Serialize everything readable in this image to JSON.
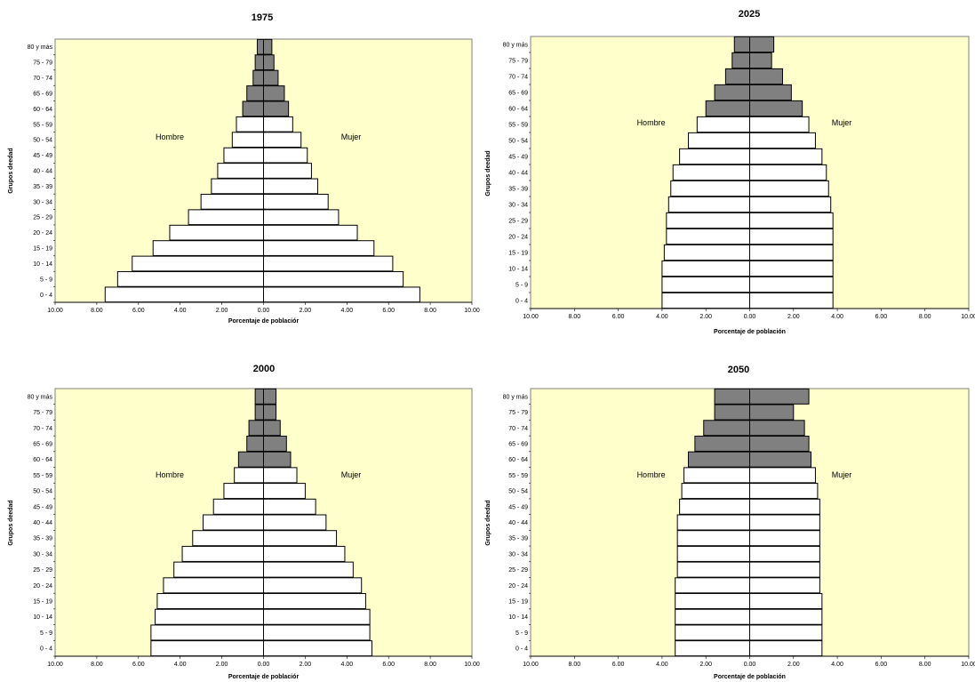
{
  "chart_data": [
    {
      "type": "bar",
      "orientation": "population-pyramid",
      "title": "1975",
      "xlabel": "Porcentaje de poblaciór",
      "ylabel": "Grupos deedad",
      "labels": {
        "male": "Hombre",
        "female": "Mujer"
      },
      "categories": [
        "0 - 4",
        "5 - 9",
        "10 - 14",
        "15 - 19",
        "20 - 24",
        "25 - 29",
        "30 - 34",
        "35 - 39",
        "40 - 44",
        "45 - 49",
        "50 - 54",
        "55 - 59",
        "60 - 64",
        "65 - 69",
        "70 - 74",
        "75 - 79",
        "80 y más"
      ],
      "xticks": [
        "10.00",
        "8.00",
        "6.00",
        "4.00",
        "2.00",
        "0.00",
        "2.00",
        "4.00",
        "6.00",
        "8.00",
        "10.00"
      ],
      "xlim": [
        -10,
        10
      ],
      "series": [
        {
          "name": "Hombre",
          "values": [
            7.6,
            7.0,
            6.3,
            5.3,
            4.5,
            3.6,
            3.0,
            2.5,
            2.2,
            1.9,
            1.5,
            1.3,
            1.0,
            0.8,
            0.5,
            0.4,
            0.3
          ]
        },
        {
          "name": "Mujer",
          "values": [
            7.5,
            6.7,
            6.2,
            5.3,
            4.5,
            3.6,
            3.1,
            2.6,
            2.3,
            2.1,
            1.8,
            1.4,
            1.2,
            1.0,
            0.7,
            0.5,
            0.4
          ]
        }
      ],
      "shaded_from_index": 12,
      "grid": false,
      "plot_background": "#ffffcc",
      "shade_color": "#808080"
    },
    {
      "type": "bar",
      "orientation": "population-pyramid",
      "title": "2025",
      "xlabel": "Porcentaje de población",
      "ylabel": "Grupos deedad",
      "labels": {
        "male": "Hombre",
        "female": "Mujer"
      },
      "categories": [
        "0 - 4",
        "5 - 9",
        "10 - 14",
        "15 - 19",
        "20 - 24",
        "25 - 29",
        "30 - 34",
        "35 - 39",
        "40 - 44",
        "45 - 49",
        "50 - 54",
        "55 - 59",
        "60 - 64",
        "65 - 69",
        "70 - 74",
        "75 - 79",
        "80 y más"
      ],
      "xticks": [
        "10.00",
        "8.00",
        "6.00",
        "4.00",
        "2.00",
        "0.00",
        "2.00",
        "4.00",
        "6.00",
        "8.00",
        "10.00"
      ],
      "xlim": [
        -10,
        10
      ],
      "series": [
        {
          "name": "Hombre",
          "values": [
            4.0,
            4.0,
            4.0,
            3.9,
            3.8,
            3.8,
            3.7,
            3.6,
            3.5,
            3.2,
            2.8,
            2.4,
            2.0,
            1.6,
            1.1,
            0.8,
            0.7
          ]
        },
        {
          "name": "Mujer",
          "values": [
            3.8,
            3.8,
            3.8,
            3.8,
            3.8,
            3.8,
            3.7,
            3.6,
            3.5,
            3.3,
            3.0,
            2.7,
            2.4,
            1.9,
            1.5,
            1.0,
            1.1
          ]
        }
      ],
      "shaded_from_index": 12,
      "grid": false,
      "plot_background": "#ffffcc",
      "shade_color": "#808080"
    },
    {
      "type": "bar",
      "orientation": "population-pyramid",
      "title": "2000",
      "xlabel": "Porcentaje de poblaciór",
      "ylabel": "Grupos deedad",
      "labels": {
        "male": "Hombre",
        "female": "Mujer"
      },
      "categories": [
        "0 - 4",
        "5 - 9",
        "10 - 14",
        "15 - 19",
        "20 - 24",
        "25 - 29",
        "30 - 34",
        "35 - 39",
        "40 - 44",
        "45 - 49",
        "50 - 54",
        "55 - 59",
        "60 - 64",
        "65 - 69",
        "70 - 74",
        "75 - 79",
        "80 y más"
      ],
      "xticks": [
        "10.00",
        "8.00",
        "6.00",
        "4.00",
        "2.00",
        "0.00",
        "2.00",
        "4.00",
        "6.00",
        "8.00",
        "10.00"
      ],
      "xlim": [
        -10,
        10
      ],
      "series": [
        {
          "name": "Hombre",
          "values": [
            5.4,
            5.4,
            5.2,
            5.1,
            4.8,
            4.3,
            3.9,
            3.4,
            2.9,
            2.4,
            1.9,
            1.4,
            1.2,
            0.8,
            0.7,
            0.4,
            0.4
          ]
        },
        {
          "name": "Mujer",
          "values": [
            5.2,
            5.1,
            5.1,
            4.9,
            4.7,
            4.3,
            3.9,
            3.5,
            3.0,
            2.5,
            2.0,
            1.6,
            1.3,
            1.1,
            0.8,
            0.6,
            0.6
          ]
        }
      ],
      "shaded_from_index": 12,
      "grid": false,
      "plot_background": "#ffffcc",
      "shade_color": "#808080"
    },
    {
      "type": "bar",
      "orientation": "population-pyramid",
      "title": "2050",
      "xlabel": "Porcentaje de población",
      "ylabel": "Grupos deedad",
      "labels": {
        "male": "Hombre",
        "female": "Mujer"
      },
      "categories": [
        "0 - 4",
        "5 - 9",
        "10 - 14",
        "15 - 19",
        "20 - 24",
        "25 - 29",
        "30 - 34",
        "35 - 39",
        "40 - 44",
        "45 - 49",
        "50 - 54",
        "55 - 59",
        "60 - 64",
        "65 - 69",
        "70 - 74",
        "75 - 79",
        "80 y más"
      ],
      "xticks": [
        "10.00",
        "8.00",
        "6.00",
        "4.00",
        "2.00",
        "0.00",
        "2.00",
        "4.00",
        "6.00",
        "8.00",
        "10.00"
      ],
      "xlim": [
        -10,
        10
      ],
      "series": [
        {
          "name": "Hombre",
          "values": [
            3.4,
            3.4,
            3.4,
            3.4,
            3.4,
            3.3,
            3.3,
            3.3,
            3.3,
            3.2,
            3.1,
            3.0,
            2.8,
            2.5,
            2.1,
            1.6,
            1.6
          ]
        },
        {
          "name": "Mujer",
          "values": [
            3.3,
            3.3,
            3.3,
            3.3,
            3.2,
            3.2,
            3.2,
            3.2,
            3.2,
            3.2,
            3.1,
            3.0,
            2.8,
            2.7,
            2.5,
            2.0,
            2.7
          ]
        }
      ],
      "shaded_from_index": 12,
      "grid": false,
      "plot_background": "#ffffcc",
      "shade_color": "#808080"
    }
  ]
}
